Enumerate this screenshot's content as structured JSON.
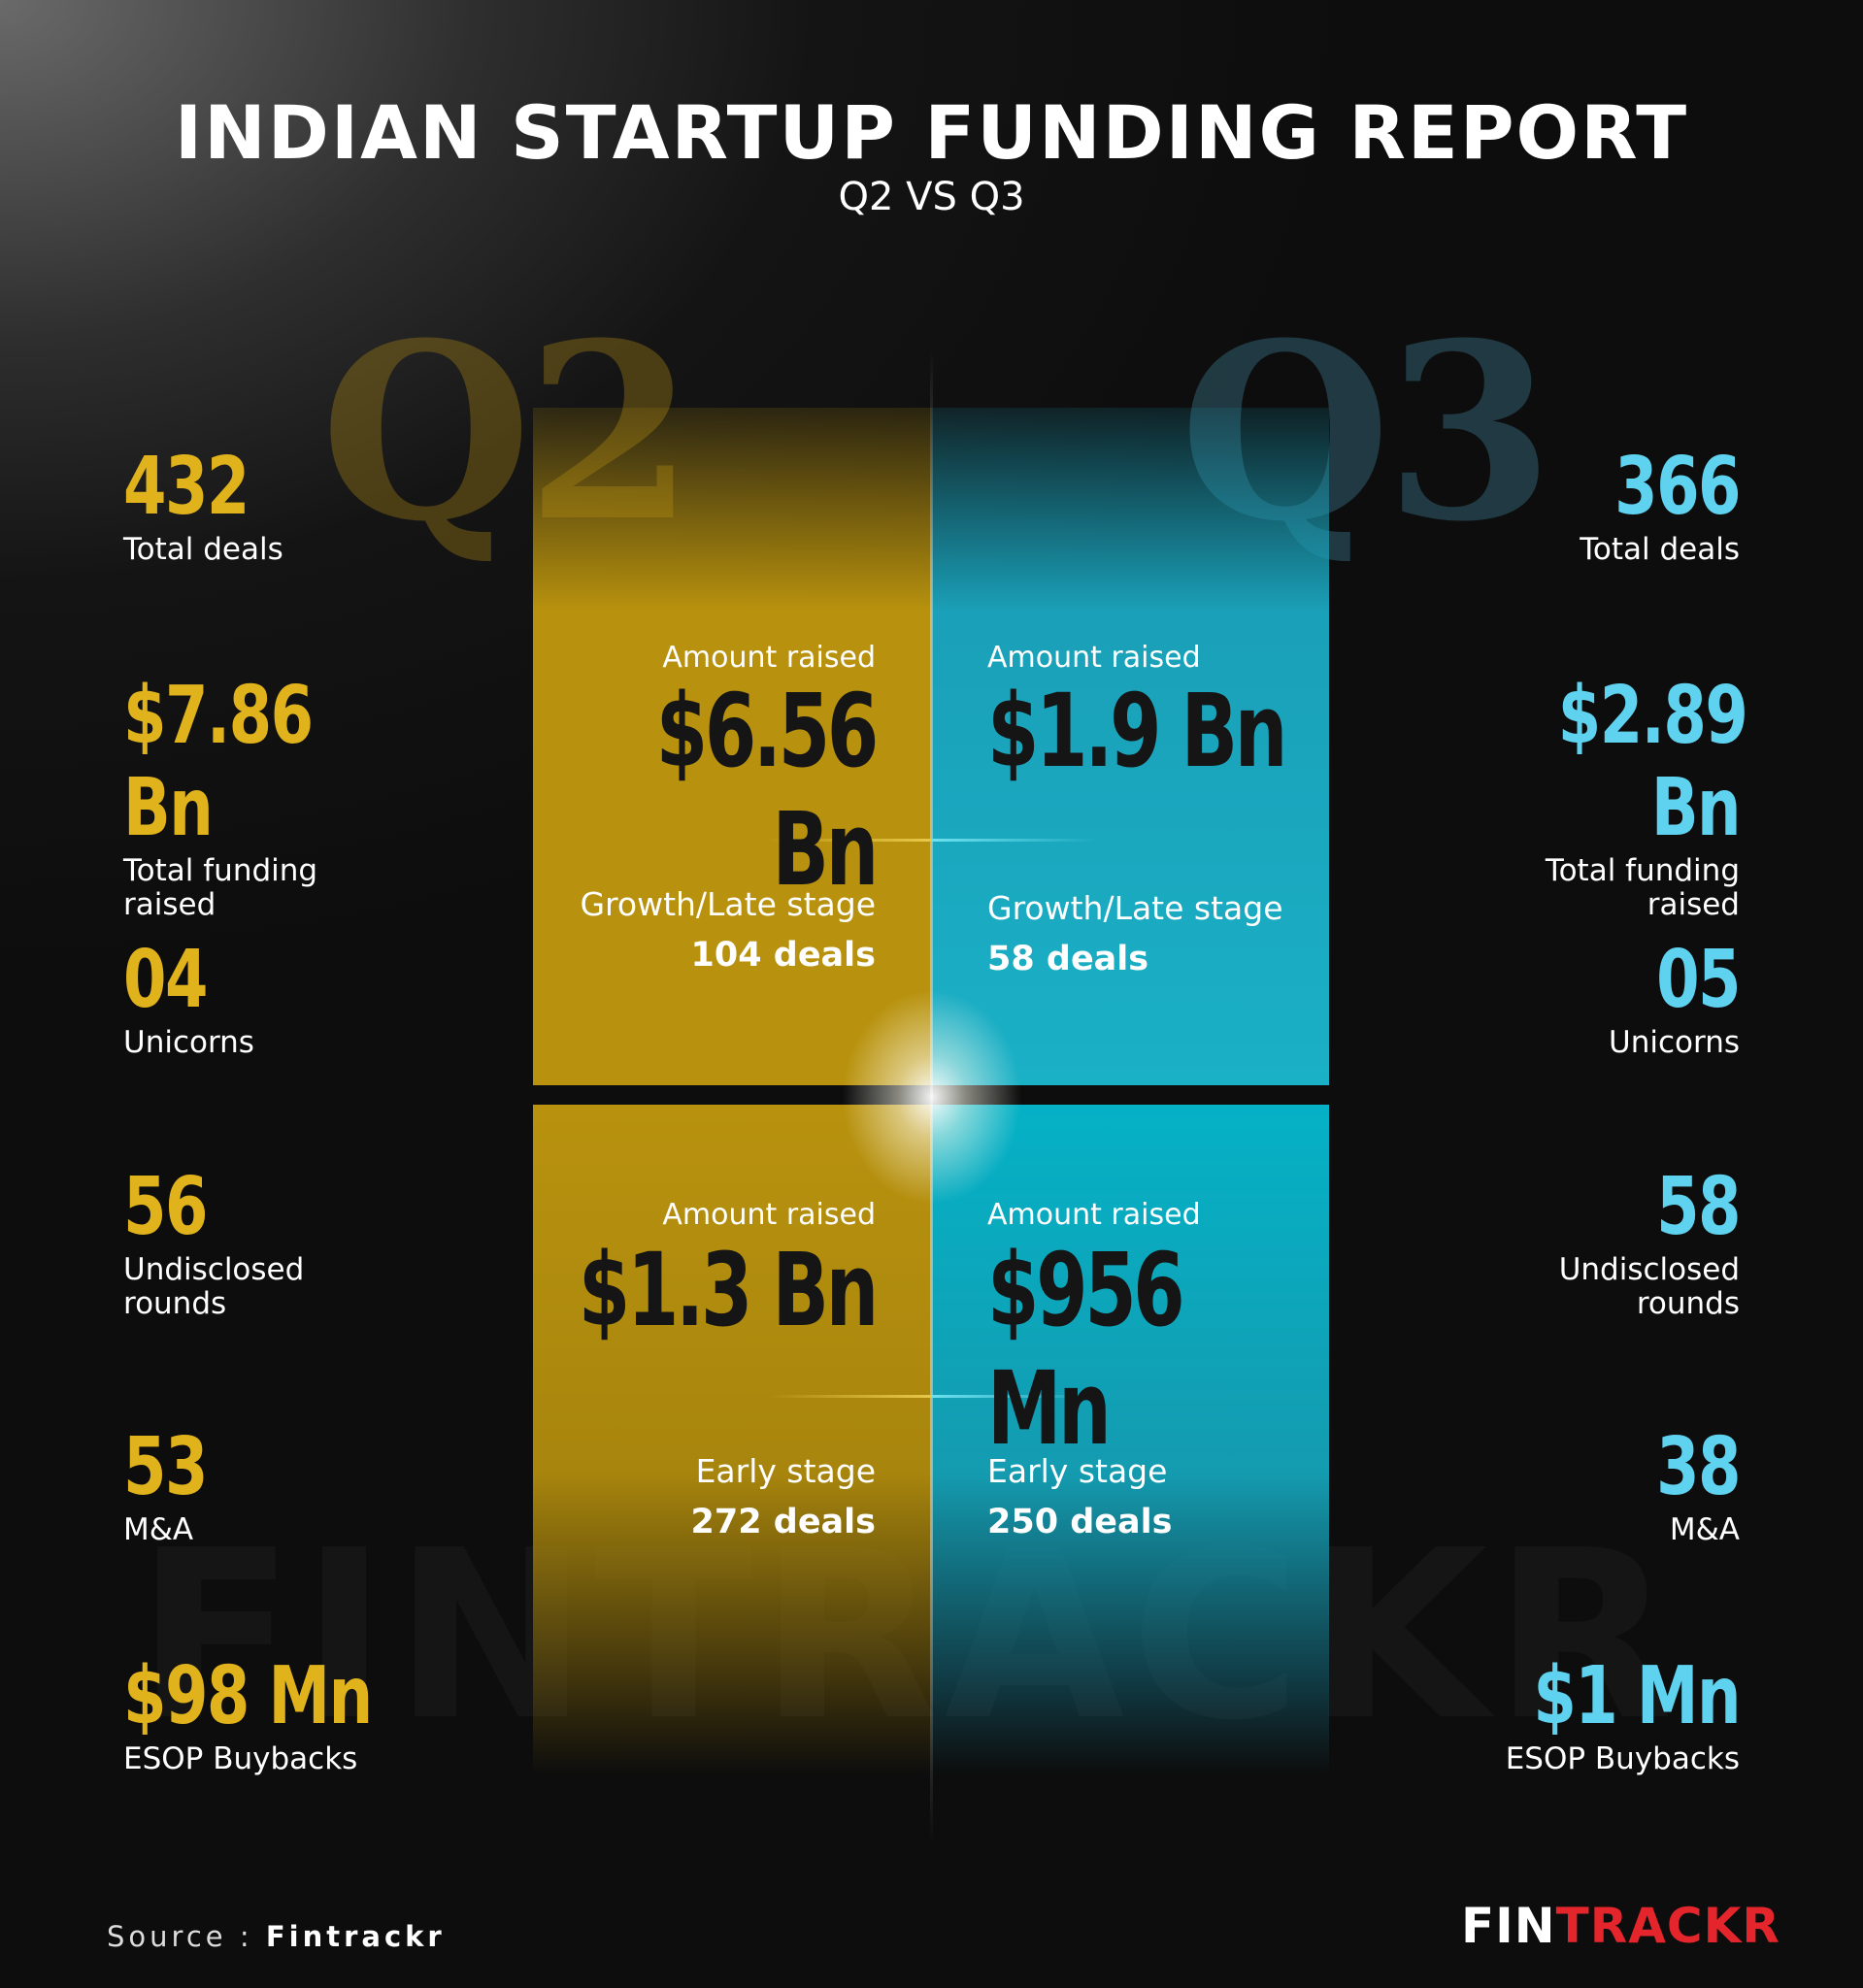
{
  "header": {
    "title": "INDIAN STARTUP FUNDING REPORT",
    "subtitle": "Q2 VS Q3",
    "ghost_q2": "Q2",
    "ghost_q3": "Q3"
  },
  "watermark": "FINTRACKR",
  "center": {
    "q2_top": {
      "amount_label": "Amount raised",
      "amount": "$6.56 Bn",
      "stage": "Growth/Late stage",
      "deals": "104 deals"
    },
    "q3_top": {
      "amount_label": "Amount raised",
      "amount": "$1.9 Bn",
      "stage": "Growth/Late stage",
      "deals": "58 deals"
    },
    "q2_bottom": {
      "amount_label": "Amount raised",
      "amount": "$1.3 Bn",
      "stage": "Early stage",
      "deals": "272 deals"
    },
    "q3_bottom": {
      "amount_label": "Amount raised",
      "amount": "$956 Mn",
      "stage": "Early stage",
      "deals": "250 deals"
    }
  },
  "q2_stats": [
    {
      "value": "432",
      "label": "Total deals"
    },
    {
      "value": "$7.86 Bn",
      "label": "Total funding raised"
    },
    {
      "value": "04",
      "label": "Unicorns"
    },
    {
      "value": "56",
      "label": "Undisclosed rounds"
    },
    {
      "value": "53",
      "label": "M&A"
    },
    {
      "value": "$98 Mn",
      "label": "ESOP Buybacks"
    }
  ],
  "q3_stats": [
    {
      "value": "366",
      "label": "Total deals"
    },
    {
      "value": "$2.89 Bn",
      "label": "Total funding raised"
    },
    {
      "value": "05",
      "label": "Unicorns"
    },
    {
      "value": "58",
      "label": "Undisclosed rounds"
    },
    {
      "value": "38",
      "label": "M&A"
    },
    {
      "value": "$1 Mn",
      "label": "ESOP Buybacks"
    }
  ],
  "footer": {
    "source_prefix": "Source : ",
    "source_name": "Fintrackr",
    "logo_part1": "FIN",
    "logo_part2": "TRACKR"
  },
  "colors": {
    "q2_accent": "#e0b21b",
    "q3_accent": "#5ed2ef",
    "logo_red": "#e4262c"
  }
}
